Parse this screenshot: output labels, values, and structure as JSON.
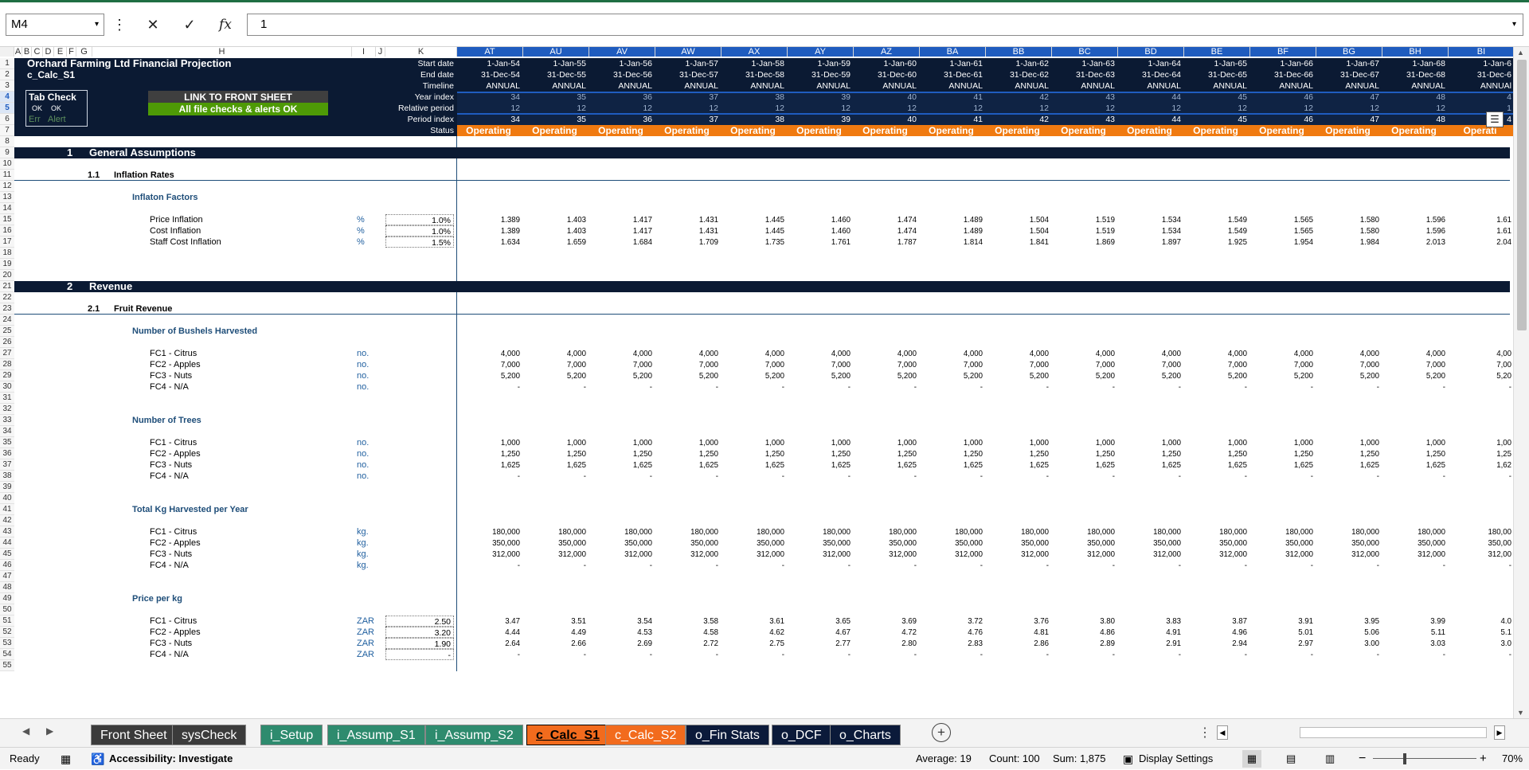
{
  "formula_bar": {
    "name_box": "M4",
    "formula": "1"
  },
  "columns_left": [
    "A",
    "B",
    "C",
    "D",
    "E",
    "F",
    "G",
    "H",
    "I",
    "J",
    "K"
  ],
  "columns_right": [
    "AT",
    "AU",
    "AV",
    "AW",
    "AX",
    "AY",
    "AZ",
    "BA",
    "BB",
    "BC",
    "BD",
    "BE",
    "BF",
    "BG",
    "BH",
    "BI"
  ],
  "rows": [
    "1",
    "2",
    "3",
    "4",
    "5",
    "6",
    "7",
    "8",
    "9",
    "10",
    "11",
    "12",
    "13",
    "14",
    "15",
    "16",
    "17",
    "18",
    "19",
    "20",
    "21",
    "22",
    "23",
    "24",
    "25",
    "26",
    "27",
    "28",
    "29",
    "30",
    "31",
    "32",
    "33",
    "34",
    "35",
    "36",
    "37",
    "38",
    "39",
    "40",
    "41",
    "42",
    "43",
    "44",
    "45",
    "46",
    "47",
    "48",
    "49",
    "50",
    "51",
    "52",
    "53",
    "54",
    "55"
  ],
  "header": {
    "title": "Orchard Farming Ltd Financial Projection",
    "sheet_name": "c_Calc_S1",
    "tab_check": "Tab Check",
    "ok1": "OK",
    "ok2": "OK",
    "err": "Err",
    "alert": "Alert",
    "link_btn": "LINK TO FRONT SHEET",
    "checks_ok": "All file checks & alerts OK",
    "labels": [
      "Start date",
      "End date",
      "Timeline",
      "Year index",
      "Relative period",
      "Period index",
      "Status"
    ]
  },
  "timeline": {
    "start_dates": [
      "1-Jan-54",
      "1-Jan-55",
      "1-Jan-56",
      "1-Jan-57",
      "1-Jan-58",
      "1-Jan-59",
      "1-Jan-60",
      "1-Jan-61",
      "1-Jan-62",
      "1-Jan-63",
      "1-Jan-64",
      "1-Jan-65",
      "1-Jan-66",
      "1-Jan-67",
      "1-Jan-68",
      "1-Jan-6"
    ],
    "end_dates": [
      "31-Dec-54",
      "31-Dec-55",
      "31-Dec-56",
      "31-Dec-57",
      "31-Dec-58",
      "31-Dec-59",
      "31-Dec-60",
      "31-Dec-61",
      "31-Dec-62",
      "31-Dec-63",
      "31-Dec-64",
      "31-Dec-65",
      "31-Dec-66",
      "31-Dec-67",
      "31-Dec-68",
      "31-Dec-6"
    ],
    "timeline": [
      "ANNUAL",
      "ANNUAL",
      "ANNUAL",
      "ANNUAL",
      "ANNUAL",
      "ANNUAL",
      "ANNUAL",
      "ANNUAL",
      "ANNUAL",
      "ANNUAL",
      "ANNUAL",
      "ANNUAL",
      "ANNUAL",
      "ANNUAL",
      "ANNUAL",
      "ANNUAl"
    ],
    "year_index": [
      "34",
      "35",
      "36",
      "37",
      "38",
      "39",
      "40",
      "41",
      "42",
      "43",
      "44",
      "45",
      "46",
      "47",
      "48",
      "4"
    ],
    "relative_period": [
      "12",
      "12",
      "12",
      "12",
      "12",
      "12",
      "12",
      "12",
      "12",
      "12",
      "12",
      "12",
      "12",
      "12",
      "12",
      "1"
    ],
    "period_index": [
      "34",
      "35",
      "36",
      "37",
      "38",
      "39",
      "40",
      "41",
      "42",
      "43",
      "44",
      "45",
      "46",
      "47",
      "48",
      "4"
    ],
    "status": [
      "Operating",
      "Operating",
      "Operating",
      "Operating",
      "Operating",
      "Operating",
      "Operating",
      "Operating",
      "Operating",
      "Operating",
      "Operating",
      "Operating",
      "Operating",
      "Operating",
      "Operating",
      "Operati"
    ]
  },
  "sections": {
    "s1_num": "1",
    "s1_title": "General Assumptions",
    "s11_num": "1.1",
    "s11_title": "Inflation Rates",
    "inflation_factors": "Inflaton Factors",
    "s2_num": "2",
    "s2_title": "Revenue",
    "s21_num": "2.1",
    "s21_title": "Fruit Revenue",
    "bushels": "Number of Bushels Harvested",
    "trees": "Number of Trees",
    "kg": "Total Kg Harvested per Year",
    "price": "Price per kg"
  },
  "inflation_rows": [
    {
      "label": "Price Inflation",
      "unit": "%",
      "input": "1.0%",
      "values": [
        "1.389",
        "1.403",
        "1.417",
        "1.431",
        "1.445",
        "1.460",
        "1.474",
        "1.489",
        "1.504",
        "1.519",
        "1.534",
        "1.549",
        "1.565",
        "1.580",
        "1.596",
        "1.61"
      ]
    },
    {
      "label": "Cost Inflation",
      "unit": "%",
      "input": "1.0%",
      "values": [
        "1.389",
        "1.403",
        "1.417",
        "1.431",
        "1.445",
        "1.460",
        "1.474",
        "1.489",
        "1.504",
        "1.519",
        "1.534",
        "1.549",
        "1.565",
        "1.580",
        "1.596",
        "1.61"
      ]
    },
    {
      "label": "Staff Cost Inflation",
      "unit": "%",
      "input": "1.5%",
      "values": [
        "1.634",
        "1.659",
        "1.684",
        "1.709",
        "1.735",
        "1.761",
        "1.787",
        "1.814",
        "1.841",
        "1.869",
        "1.897",
        "1.925",
        "1.954",
        "1.984",
        "2.013",
        "2.04"
      ]
    }
  ],
  "bushel_rows": [
    {
      "label": "FC1 - Citrus",
      "unit": "no.",
      "values": [
        "4,000",
        "4,000",
        "4,000",
        "4,000",
        "4,000",
        "4,000",
        "4,000",
        "4,000",
        "4,000",
        "4,000",
        "4,000",
        "4,000",
        "4,000",
        "4,000",
        "4,000",
        "4,00"
      ]
    },
    {
      "label": "FC2 - Apples",
      "unit": "no.",
      "values": [
        "7,000",
        "7,000",
        "7,000",
        "7,000",
        "7,000",
        "7,000",
        "7,000",
        "7,000",
        "7,000",
        "7,000",
        "7,000",
        "7,000",
        "7,000",
        "7,000",
        "7,000",
        "7,00"
      ]
    },
    {
      "label": "FC3 - Nuts",
      "unit": "no.",
      "values": [
        "5,200",
        "5,200",
        "5,200",
        "5,200",
        "5,200",
        "5,200",
        "5,200",
        "5,200",
        "5,200",
        "5,200",
        "5,200",
        "5,200",
        "5,200",
        "5,200",
        "5,200",
        "5,20"
      ]
    },
    {
      "label": "FC4 - N/A",
      "unit": "no.",
      "values": [
        "-",
        "-",
        "-",
        "-",
        "-",
        "-",
        "-",
        "-",
        "-",
        "-",
        "-",
        "-",
        "-",
        "-",
        "-",
        "-"
      ]
    }
  ],
  "tree_rows": [
    {
      "label": "FC1 - Citrus",
      "unit": "no.",
      "values": [
        "1,000",
        "1,000",
        "1,000",
        "1,000",
        "1,000",
        "1,000",
        "1,000",
        "1,000",
        "1,000",
        "1,000",
        "1,000",
        "1,000",
        "1,000",
        "1,000",
        "1,000",
        "1,00"
      ]
    },
    {
      "label": "FC2 - Apples",
      "unit": "no.",
      "values": [
        "1,250",
        "1,250",
        "1,250",
        "1,250",
        "1,250",
        "1,250",
        "1,250",
        "1,250",
        "1,250",
        "1,250",
        "1,250",
        "1,250",
        "1,250",
        "1,250",
        "1,250",
        "1,25"
      ]
    },
    {
      "label": "FC3 - Nuts",
      "unit": "no.",
      "values": [
        "1,625",
        "1,625",
        "1,625",
        "1,625",
        "1,625",
        "1,625",
        "1,625",
        "1,625",
        "1,625",
        "1,625",
        "1,625",
        "1,625",
        "1,625",
        "1,625",
        "1,625",
        "1,62"
      ]
    },
    {
      "label": "FC4 - N/A",
      "unit": "no.",
      "values": [
        "-",
        "-",
        "-",
        "-",
        "-",
        "-",
        "-",
        "-",
        "-",
        "-",
        "-",
        "-",
        "-",
        "-",
        "-",
        "-"
      ]
    }
  ],
  "kg_rows": [
    {
      "label": "FC1 - Citrus",
      "unit": "kg.",
      "values": [
        "180,000",
        "180,000",
        "180,000",
        "180,000",
        "180,000",
        "180,000",
        "180,000",
        "180,000",
        "180,000",
        "180,000",
        "180,000",
        "180,000",
        "180,000",
        "180,000",
        "180,000",
        "180,00"
      ]
    },
    {
      "label": "FC2 - Apples",
      "unit": "kg.",
      "values": [
        "350,000",
        "350,000",
        "350,000",
        "350,000",
        "350,000",
        "350,000",
        "350,000",
        "350,000",
        "350,000",
        "350,000",
        "350,000",
        "350,000",
        "350,000",
        "350,000",
        "350,000",
        "350,00"
      ]
    },
    {
      "label": "FC3 - Nuts",
      "unit": "kg.",
      "values": [
        "312,000",
        "312,000",
        "312,000",
        "312,000",
        "312,000",
        "312,000",
        "312,000",
        "312,000",
        "312,000",
        "312,000",
        "312,000",
        "312,000",
        "312,000",
        "312,000",
        "312,000",
        "312,00"
      ]
    },
    {
      "label": "FC4 - N/A",
      "unit": "kg.",
      "values": [
        "-",
        "-",
        "-",
        "-",
        "-",
        "-",
        "-",
        "-",
        "-",
        "-",
        "-",
        "-",
        "-",
        "-",
        "-",
        "-"
      ]
    }
  ],
  "price_rows": [
    {
      "label": "FC1 - Citrus",
      "unit": "ZAR",
      "input": "2.50",
      "values": [
        "3.47",
        "3.51",
        "3.54",
        "3.58",
        "3.61",
        "3.65",
        "3.69",
        "3.72",
        "3.76",
        "3.80",
        "3.83",
        "3.87",
        "3.91",
        "3.95",
        "3.99",
        "4.0"
      ]
    },
    {
      "label": "FC2 - Apples",
      "unit": "ZAR",
      "input": "3.20",
      "values": [
        "4.44",
        "4.49",
        "4.53",
        "4.58",
        "4.62",
        "4.67",
        "4.72",
        "4.76",
        "4.81",
        "4.86",
        "4.91",
        "4.96",
        "5.01",
        "5.06",
        "5.11",
        "5.1"
      ]
    },
    {
      "label": "FC3 - Nuts",
      "unit": "ZAR",
      "input": "1.90",
      "values": [
        "2.64",
        "2.66",
        "2.69",
        "2.72",
        "2.75",
        "2.77",
        "2.80",
        "2.83",
        "2.86",
        "2.89",
        "2.91",
        "2.94",
        "2.97",
        "3.00",
        "3.03",
        "3.0"
      ]
    },
    {
      "label": "FC4 - N/A",
      "unit": "ZAR",
      "input": "-",
      "values": [
        "-",
        "-",
        "-",
        "-",
        "-",
        "-",
        "-",
        "-",
        "-",
        "-",
        "-",
        "-",
        "-",
        "-",
        "-",
        "-"
      ]
    }
  ],
  "tabs": [
    {
      "label": "Front Sheet",
      "bg": "#3b3b3b",
      "fg": "#ffffff"
    },
    {
      "label": "sysCheck",
      "bg": "#3b3b3b",
      "fg": "#ffffff"
    },
    {
      "label": "i_Setup",
      "bg": "#2e8b6e",
      "fg": "#ffffff"
    },
    {
      "label": "i_Assump_S1",
      "bg": "#2e8b6e",
      "fg": "#ffffff"
    },
    {
      "label": "i_Assump_S2",
      "bg": "#2e8b6e",
      "fg": "#ffffff"
    },
    {
      "label": "c_Calc_S1",
      "bg": "#f26b1d",
      "fg": "#000000",
      "active": true
    },
    {
      "label": "c_Calc_S2",
      "bg": "#f26b1d",
      "fg": "#ffffff"
    },
    {
      "label": "o_Fin Stats",
      "bg": "#0b1a3a",
      "fg": "#ffffff"
    },
    {
      "label": "o_DCF",
      "bg": "#0b1a3a",
      "fg": "#ffffff"
    },
    {
      "label": "o_Charts",
      "bg": "#0b1a3a",
      "fg": "#ffffff"
    }
  ],
  "status": {
    "ready": "Ready",
    "accessibility": "Accessibility: Investigate",
    "average": "Average: 19",
    "count": "Count: 100",
    "sum": "Sum: 1,875",
    "display_settings": "Display Settings",
    "zoom": "70%"
  },
  "colors": {
    "dark_navy": "#0b1a33",
    "orange": "#f07a10",
    "green_ok": "#4e9a06",
    "label_blue": "#1f5f9f",
    "selected_col": "#1f5cbf"
  }
}
